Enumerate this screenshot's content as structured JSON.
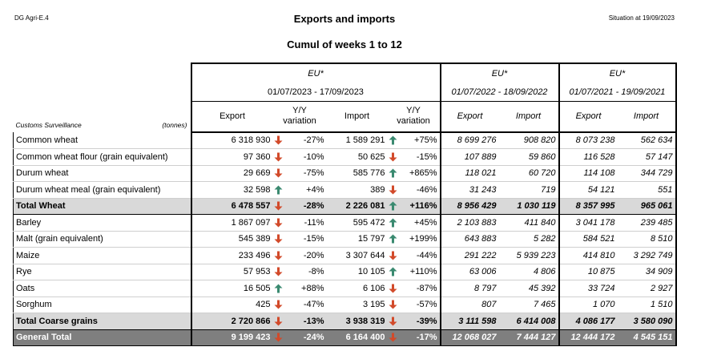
{
  "header": {
    "left": "DG Agri-E.4",
    "title": "Exports and imports",
    "right": "Situation at 19/09/2023",
    "subtitle": "Cumul of weeks 1 to 12"
  },
  "table": {
    "row_header_label": "Customs Surveillance",
    "unit_label": "(tonnes)",
    "groups": [
      {
        "label": "EU*",
        "period": "01/07/2023 - 17/09/2023"
      },
      {
        "label": "EU*",
        "period": "01/07/2022 - 18/09/2022"
      },
      {
        "label": "EU*",
        "period": "01/07/2021 - 19/09/2021"
      }
    ],
    "columns": {
      "export": "Export",
      "yy_variation_line1": "Y/Y",
      "yy_variation_line2": "variation",
      "import": "Import",
      "export_prev": "Export",
      "import_prev": "Import",
      "export_prev2": "Export",
      "import_prev2": "Import"
    },
    "rows": [
      {
        "name": "Common wheat",
        "exp": "6 318 930",
        "exp_dir": "down",
        "exp_var": "-27%",
        "imp": "1 589 291",
        "imp_dir": "up",
        "imp_var": "+75%",
        "exp22": "8 699 276",
        "imp22": "908 820",
        "exp21": "8 073 238",
        "imp21": "562 634",
        "kind": "body"
      },
      {
        "name": "Common wheat flour (grain equivalent)",
        "exp": "97 360",
        "exp_dir": "down",
        "exp_var": "-10%",
        "imp": "50 625",
        "imp_dir": "down",
        "imp_var": "-15%",
        "exp22": "107 889",
        "imp22": "59 860",
        "exp21": "116 528",
        "imp21": "57 147",
        "kind": "body"
      },
      {
        "name": "Durum wheat",
        "exp": "29 669",
        "exp_dir": "down",
        "exp_var": "-75%",
        "imp": "585 776",
        "imp_dir": "up",
        "imp_var": "+865%",
        "exp22": "118 021",
        "imp22": "60 720",
        "exp21": "114 108",
        "imp21": "344 729",
        "kind": "body"
      },
      {
        "name": "Durum wheat meal (grain equivalent)",
        "exp": "32 598",
        "exp_dir": "up",
        "exp_var": "+4%",
        "imp": "389",
        "imp_dir": "down",
        "imp_var": "-46%",
        "exp22": "31 243",
        "imp22": "719",
        "exp21": "54 121",
        "imp21": "551",
        "kind": "body"
      },
      {
        "name": "Total Wheat",
        "exp": "6 478 557",
        "exp_dir": "down",
        "exp_var": "-28%",
        "imp": "2 226 081",
        "imp_dir": "up",
        "imp_var": "+116%",
        "exp22": "8 956 429",
        "imp22": "1 030 119",
        "exp21": "8 357 995",
        "imp21": "965 061",
        "kind": "total"
      },
      {
        "name": "Barley",
        "exp": "1 867 097",
        "exp_dir": "down",
        "exp_var": "-11%",
        "imp": "595 472",
        "imp_dir": "up",
        "imp_var": "+45%",
        "exp22": "2 103 883",
        "imp22": "411 840",
        "exp21": "3 041 178",
        "imp21": "239 485",
        "kind": "body"
      },
      {
        "name": "Malt (grain equivalent)",
        "exp": "545 389",
        "exp_dir": "down",
        "exp_var": "-15%",
        "imp": "15 797",
        "imp_dir": "up",
        "imp_var": "+199%",
        "exp22": "643 883",
        "imp22": "5 282",
        "exp21": "584 521",
        "imp21": "8 510",
        "kind": "body"
      },
      {
        "name": "Maize",
        "exp": "233 496",
        "exp_dir": "down",
        "exp_var": "-20%",
        "imp": "3 307 644",
        "imp_dir": "down",
        "imp_var": "-44%",
        "exp22": "291 222",
        "imp22": "5 939 223",
        "exp21": "414 810",
        "imp21": "3 292 749",
        "kind": "body"
      },
      {
        "name": "Rye",
        "exp": "57 953",
        "exp_dir": "down",
        "exp_var": "-8%",
        "imp": "10 105",
        "imp_dir": "up",
        "imp_var": "+110%",
        "exp22": "63 006",
        "imp22": "4 806",
        "exp21": "10 875",
        "imp21": "34 909",
        "kind": "body"
      },
      {
        "name": "Oats",
        "exp": "16 505",
        "exp_dir": "up",
        "exp_var": "+88%",
        "imp": "6 106",
        "imp_dir": "down",
        "imp_var": "-87%",
        "exp22": "8 797",
        "imp22": "45 392",
        "exp21": "33 724",
        "imp21": "2 927",
        "kind": "body"
      },
      {
        "name": "Sorghum",
        "exp": "425",
        "exp_dir": "down",
        "exp_var": "-47%",
        "imp": "3 195",
        "imp_dir": "down",
        "imp_var": "-57%",
        "exp22": "807",
        "imp22": "7 465",
        "exp21": "1 070",
        "imp21": "1 510",
        "kind": "body"
      },
      {
        "name": "Total Coarse grains",
        "exp": "2 720 866",
        "exp_dir": "down",
        "exp_var": "-13%",
        "imp": "3 938 319",
        "imp_dir": "down",
        "imp_var": "-39%",
        "exp22": "3 111 598",
        "imp22": "6 414 008",
        "exp21": "4 086 177",
        "imp21": "3 580 090",
        "kind": "total"
      },
      {
        "name": "General Total",
        "exp": "9 199 423",
        "exp_dir": "down",
        "exp_var": "-24%",
        "imp": "6 164 400",
        "imp_dir": "down",
        "imp_var": "-17%",
        "exp22": "12 068 027",
        "imp22": "7 444 127",
        "exp21": "12 444 172",
        "imp21": "4 545 151",
        "kind": "grand"
      }
    ]
  },
  "colors": {
    "up_arrow": "#3a8a70",
    "down_arrow": "#d24a2a",
    "total_bg": "#d9d9d9",
    "grand_bg": "#7f7f7f"
  },
  "icons": {
    "up": "arrow-up-icon",
    "down": "arrow-down-icon"
  }
}
